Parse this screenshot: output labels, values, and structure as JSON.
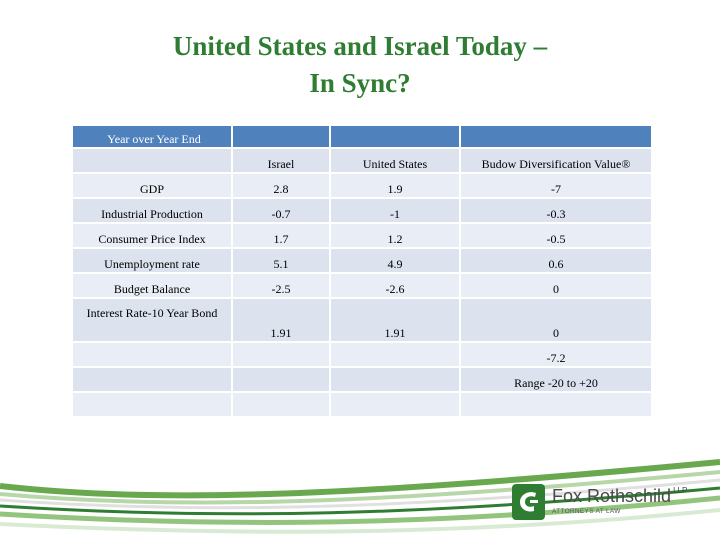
{
  "title": {
    "line1": "United States and Israel Today –",
    "line2": "In Sync?"
  },
  "table": {
    "header_label": "Year over Year End",
    "columns": [
      "Israel",
      "United States",
      "Budow Diversification Value®"
    ],
    "rows": [
      {
        "label": "GDP",
        "values": [
          "2.8",
          "1.9",
          "-7"
        ]
      },
      {
        "label": "Industrial Production",
        "values": [
          "-0.7",
          "-1",
          "-0.3"
        ]
      },
      {
        "label": "Consumer Price Index",
        "values": [
          "1.7",
          "1.2",
          "-0.5"
        ]
      },
      {
        "label": "Unemployment rate",
        "values": [
          "5.1",
          "4.9",
          "0.6"
        ]
      },
      {
        "label": "Budget Balance",
        "values": [
          "-2.5",
          "-2.6",
          "0"
        ]
      },
      {
        "label": "Interest Rate-10 Year Bond",
        "values": [
          "1.91",
          "1.91",
          "0"
        ]
      },
      {
        "label": "",
        "values": [
          "",
          "",
          "-7.2"
        ]
      },
      {
        "label": "",
        "values": [
          "",
          "",
          "Range -20 to +20"
        ]
      },
      {
        "label": "",
        "values": [
          "",
          "",
          ""
        ]
      }
    ]
  },
  "logo": {
    "name": "Fox Rothschild",
    "suffix": "LLP",
    "tagline": "ATTORNEYS AT LAW"
  },
  "colors": {
    "title": "#2e7d32",
    "header": "#4f81bd",
    "row_even": "#dce3ef",
    "row_odd": "#e9eef6",
    "brand_green": "#2e7d32"
  }
}
